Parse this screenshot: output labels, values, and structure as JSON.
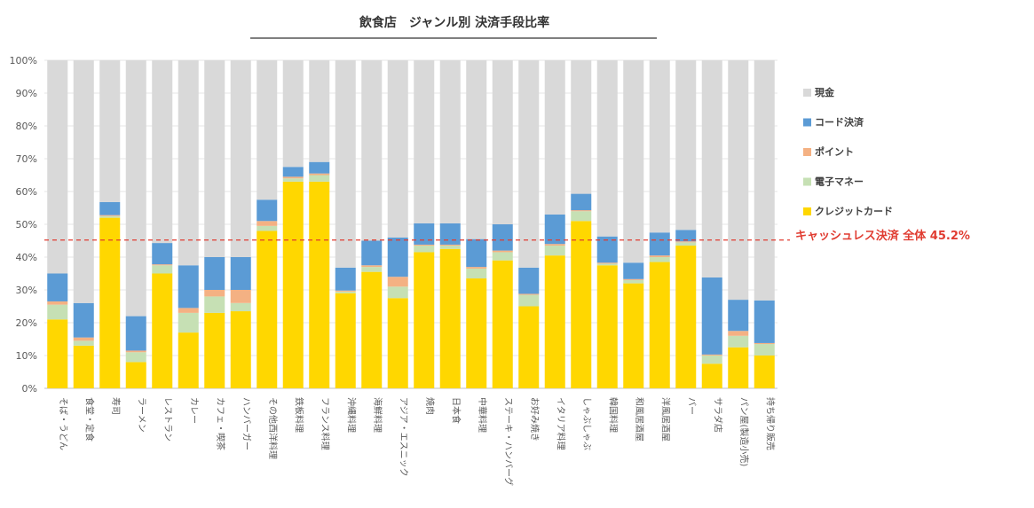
{
  "chart_data": {
    "type": "bar",
    "stacked": true,
    "title": "飲食店　ジャンル別 決済手段比率",
    "ylim": [
      0,
      100
    ],
    "yticks": [
      "0%",
      "10%",
      "20%",
      "30%",
      "40%",
      "50%",
      "60%",
      "70%",
      "80%",
      "90%",
      "100%"
    ],
    "categories": [
      "そば・うどん",
      "食堂・定食",
      "寿司",
      "ラーメン",
      "レストラン",
      "カレー",
      "カフェ・喫茶",
      "ハンバーガー",
      "その他西洋料理",
      "鉄板料理",
      "フランス料理",
      "沖縄料理",
      "海鮮料理",
      "アジア・エスニック",
      "焼肉",
      "日本食",
      "中華料理",
      "ステーキ・ハンバーグ",
      "お好み焼き",
      "イタリア料理",
      "しゃぶしゃぶ",
      "韓国料理",
      "和風居酒屋",
      "洋風居酒屋",
      "バー",
      "サラダ店",
      "パン屋(製造小売)",
      "持ち帰り販売"
    ],
    "series": [
      {
        "name": "クレジットカード",
        "color": "#FFD700",
        "values": [
          21,
          13,
          52,
          8,
          35,
          17,
          23,
          23.5,
          48,
          63,
          63,
          29,
          35.5,
          27.5,
          41.5,
          42.5,
          33.5,
          39,
          25,
          40.5,
          51,
          37.5,
          32,
          38.5,
          43.5,
          7.5,
          12.5,
          10
        ]
      },
      {
        "name": "電子マネー",
        "color": "#C6E0B4",
        "values": [
          4.5,
          1.5,
          0.5,
          3,
          2.5,
          6,
          5,
          2.5,
          1.5,
          1,
          2,
          0.5,
          1.5,
          3.5,
          2,
          1,
          3,
          2.5,
          3.5,
          3,
          3,
          0.5,
          1,
          1.5,
          1,
          2.5,
          3.5,
          3.5
        ]
      },
      {
        "name": "ポイント",
        "color": "#F4B183",
        "values": [
          1,
          1,
          0.3,
          0.5,
          0.3,
          1.5,
          2,
          4,
          1.5,
          0.5,
          0.5,
          0.3,
          0.5,
          3,
          0.3,
          0.3,
          0.5,
          0.5,
          0.3,
          0.5,
          0.3,
          0.3,
          0.3,
          0.5,
          0.3,
          0.3,
          1.5,
          0.3
        ]
      },
      {
        "name": "コード決済",
        "color": "#5B9BD5",
        "values": [
          8.5,
          10.5,
          4,
          10.5,
          6.5,
          13,
          10,
          10,
          6.5,
          3,
          3.5,
          7,
          7.5,
          12,
          6.5,
          6.5,
          8.5,
          8,
          8,
          9,
          5,
          8,
          5,
          7,
          3.5,
          23.5,
          9.5,
          13
        ]
      },
      {
        "name": "現金",
        "color": "#D9D9D9",
        "values": [
          65,
          74,
          43.2,
          78,
          55.7,
          62.5,
          60,
          60,
          42.5,
          32.5,
          31,
          63.2,
          55,
          54,
          49.7,
          49.7,
          54.5,
          50,
          63.2,
          47,
          40.7,
          53.7,
          61.7,
          52.5,
          51.7,
          66.2,
          73,
          73.2
        ]
      }
    ],
    "legend": [
      "現金",
      "コード決済",
      "ポイント",
      "電子マネー",
      "クレジットカード"
    ],
    "legend_position": "right",
    "reference_line": {
      "value": 45.2,
      "label": "キャッシュレス決済 全体 45.2%",
      "color": "#E03C31"
    }
  }
}
